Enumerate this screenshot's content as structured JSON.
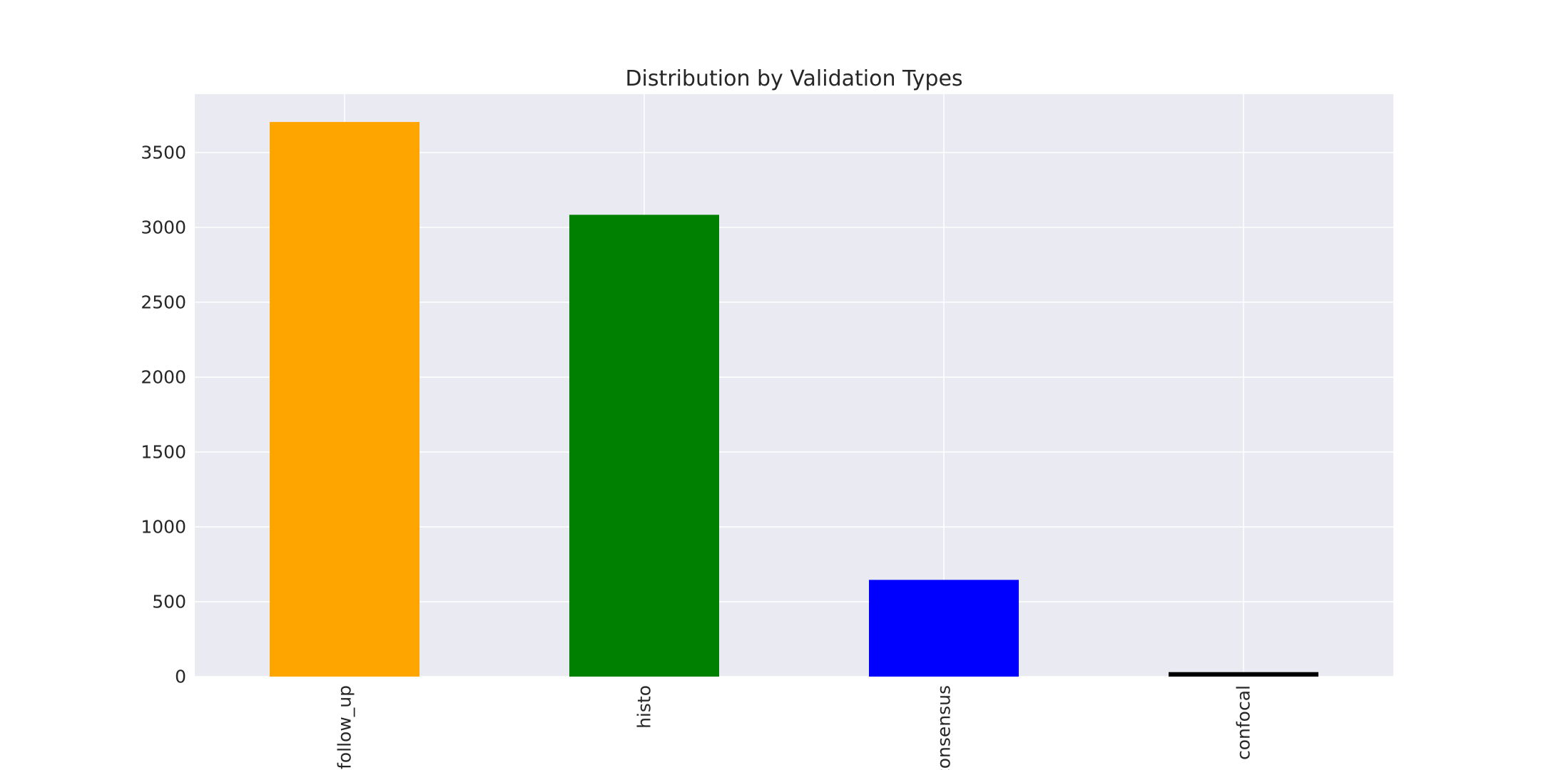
{
  "chart_data": {
    "type": "bar",
    "title": "Distribution by Validation Types",
    "xlabel": "",
    "ylabel": "",
    "categories": [
      "follow_up",
      "histo",
      "consensus",
      "confocal"
    ],
    "values": [
      3704,
      3084,
      646,
      30
    ],
    "colors": [
      "#ffa500",
      "#008000",
      "#0000ff",
      "#000000"
    ],
    "ylim": [
      0,
      3890
    ],
    "yticks": [
      0,
      500,
      1000,
      1500,
      2000,
      2500,
      3000,
      3500
    ],
    "ytick_labels": [
      "0",
      "500",
      "1000",
      "1500",
      "2000",
      "2500",
      "3000",
      "3500"
    ],
    "grid": true,
    "legend": "none",
    "background": "#eaeaf2",
    "xtick_rotation": "vertical"
  }
}
